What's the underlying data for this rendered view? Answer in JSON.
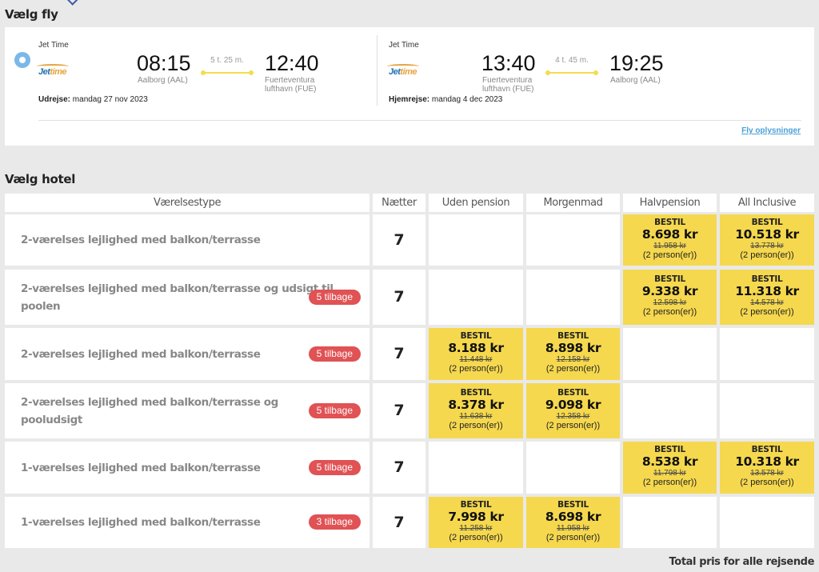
{
  "flight_section": {
    "title": "Vælg fly",
    "link": "Fly oplysninger"
  },
  "outbound": {
    "airline": "Jet Time",
    "logo_a": "Jet",
    "logo_b": "time",
    "dep_time": "08:15",
    "dep_place": "Aalborg (AAL)",
    "duration": "5 t. 25 m.",
    "arr_time": "12:40",
    "arr_place_1": "Fuerteventura",
    "arr_place_2": "lufthavn (FUE)",
    "date_label": "Udrejse:",
    "date": "mandag 27 nov 2023"
  },
  "inbound": {
    "airline": "Jet Time",
    "logo_a": "Jet",
    "logo_b": "time",
    "dep_time": "13:40",
    "dep_place_1": "Fuerteventura",
    "dep_place_2": "lufthavn (FUE)",
    "duration": "4 t. 45 m.",
    "arr_time": "19:25",
    "arr_place": "Aalborg (AAL)",
    "date_label": "Hjemrejse:",
    "date": "mandag 4 dec 2023"
  },
  "hotel_section": {
    "title": "Vælg hotel",
    "headers": [
      "Værelsestype",
      "Nætter",
      "Uden pension",
      "Morgenmad",
      "Halvpension",
      "All Inclusive"
    ],
    "book_label": "BESTIL",
    "persons": "(2 person(er))",
    "rows": [
      {
        "name_1": "2-værelses lejlighed med balkon/terrasse",
        "name_2": "",
        "badge": "",
        "nights": "7",
        "prices": [
          null,
          null,
          {
            "amt": "8.698 kr",
            "old": "11.958 kr"
          },
          {
            "amt": "10.518 kr",
            "old": "13.778 kr"
          }
        ]
      },
      {
        "name_1": "2-værelses lejlighed med balkon/terrasse og udsigt til",
        "name_2": "poolen",
        "badge": "5 tilbage",
        "nights": "7",
        "prices": [
          null,
          null,
          {
            "amt": "9.338 kr",
            "old": "12.598 kr"
          },
          {
            "amt": "11.318 kr",
            "old": "14.578 kr"
          }
        ]
      },
      {
        "name_1": "2-værelses lejlighed med balkon/terrasse",
        "name_2": "",
        "badge": "5 tilbage",
        "nights": "7",
        "prices": [
          {
            "amt": "8.188 kr",
            "old": "11.448 kr"
          },
          {
            "amt": "8.898 kr",
            "old": "12.158 kr"
          },
          null,
          null
        ]
      },
      {
        "name_1": "2-værelses lejlighed med balkon/terrasse og",
        "name_2": "pooludsigt",
        "badge": "5 tilbage",
        "nights": "7",
        "prices": [
          {
            "amt": "8.378 kr",
            "old": "11.638 kr"
          },
          {
            "amt": "9.098 kr",
            "old": "12.358 kr"
          },
          null,
          null
        ]
      },
      {
        "name_1": "1-værelses lejlighed med balkon/terrasse",
        "name_2": "",
        "badge": "5 tilbage",
        "nights": "7",
        "prices": [
          null,
          null,
          {
            "amt": "8.538 kr",
            "old": "11.798 kr"
          },
          {
            "amt": "10.318 kr",
            "old": "13.578 kr"
          }
        ]
      },
      {
        "name_1": "1-værelses lejlighed med balkon/terrasse",
        "name_2": "",
        "badge": "3 tilbage",
        "nights": "7",
        "prices": [
          {
            "amt": "7.998 kr",
            "old": "11.258 kr"
          },
          {
            "amt": "8.698 kr",
            "old": "11.958 kr"
          },
          null,
          null
        ]
      }
    ],
    "total_label": "Total pris for alle rejsende"
  }
}
